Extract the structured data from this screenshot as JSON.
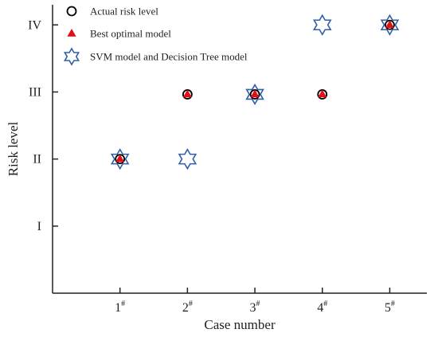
{
  "chart_data": {
    "type": "scatter",
    "title": "",
    "xlabel": "Case number",
    "ylabel": "Risk level",
    "categories": [
      "1",
      "2",
      "3",
      "4",
      "5"
    ],
    "category_suffix": "#",
    "y_levels": [
      "I",
      "II",
      "III",
      "IV"
    ],
    "xlim": [
      0,
      5.55
    ],
    "ylim": [
      0,
      4.3
    ],
    "grid": false,
    "legend_position": "top-left",
    "series": [
      {
        "name": "Actual risk level",
        "marker": "circle",
        "color": "#000000",
        "points": [
          [
            1,
            2
          ],
          [
            2,
            3
          ],
          [
            3,
            3
          ],
          [
            4,
            3
          ],
          [
            5,
            4
          ]
        ]
      },
      {
        "name": "Best optimal model",
        "marker": "triangle",
        "color": "#e0101a",
        "points": [
          [
            1,
            2
          ],
          [
            2,
            3
          ],
          [
            3,
            3
          ],
          [
            4,
            3
          ],
          [
            5,
            4
          ]
        ]
      },
      {
        "name": "SVM model and Decision Tree model",
        "marker": "hexagram",
        "color": "#2e5fa8",
        "points": [
          [
            1,
            2
          ],
          [
            2,
            2
          ],
          [
            3,
            3
          ],
          [
            4,
            4
          ],
          [
            5,
            4
          ]
        ]
      }
    ]
  }
}
